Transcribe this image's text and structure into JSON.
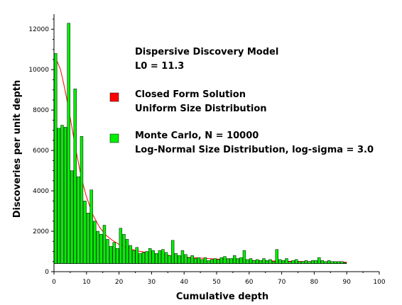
{
  "chart_data": {
    "type": "bar",
    "xlabel": "Cumulative depth",
    "ylabel": "Discoveries per unit depth",
    "xlim": [
      0,
      100
    ],
    "ylim": [
      0,
      12500
    ],
    "baseline": 400,
    "xticks": [
      "0",
      "10",
      "20",
      "30",
      "40",
      "50",
      "60",
      "70",
      "80",
      "90",
      "100"
    ],
    "yticks": [
      "0",
      "2000",
      "4000",
      "6000",
      "8000",
      "10000",
      "12000"
    ],
    "annotations": {
      "title_line1": "Dispersive Discovery Model",
      "title_line2": "L0 = 11.3",
      "closed_line1": "Closed Form Solution",
      "closed_line2": "Uniform Size Distribution",
      "mc_line1": "Monte Carlo, N = 10000",
      "mc_line2": "Log-Normal Size Distribution, log-sigma = 3.0"
    },
    "series": [
      {
        "name": "Closed Form Solution Uniform Size Distribution",
        "type": "line",
        "color": "#ff0000",
        "x": [
          1,
          2,
          3,
          4,
          5,
          6,
          7,
          8,
          9,
          10,
          12,
          14,
          16,
          18,
          20,
          25,
          30,
          40,
          50,
          60,
          70,
          80,
          90
        ],
        "y": [
          10400,
          10000,
          9300,
          8500,
          7600,
          6700,
          5800,
          5000,
          4300,
          3700,
          2800,
          2200,
          1800,
          1550,
          1350,
          1050,
          900,
          720,
          620,
          560,
          520,
          490,
          470
        ]
      },
      {
        "name": "Monte Carlo, N = 10000 Log-Normal Size Distribution, log-sigma = 3.0",
        "type": "bar",
        "color": "#00ee00",
        "x": [
          1,
          2,
          3,
          4,
          5,
          6,
          7,
          8,
          9,
          10,
          11,
          12,
          13,
          14,
          15,
          16,
          17,
          18,
          19,
          20,
          21,
          22,
          23,
          24,
          25,
          26,
          27,
          28,
          29,
          30,
          31,
          32,
          33,
          34,
          35,
          36,
          37,
          38,
          39,
          40,
          41,
          42,
          43,
          44,
          45,
          46,
          47,
          48,
          49,
          50,
          51,
          52,
          53,
          54,
          55,
          56,
          57,
          58,
          59,
          60,
          61,
          62,
          63,
          64,
          65,
          66,
          67,
          68,
          69,
          70,
          71,
          72,
          73,
          74,
          75,
          76,
          77,
          78,
          79,
          80,
          81,
          82,
          83,
          84,
          85,
          86,
          87,
          88,
          89,
          90
        ],
        "y": [
          10800,
          7100,
          7250,
          7150,
          12300,
          5000,
          9050,
          4700,
          6700,
          3500,
          2900,
          4050,
          2500,
          2000,
          1850,
          2300,
          1600,
          1250,
          1450,
          1150,
          2150,
          1850,
          1600,
          1300,
          1050,
          1200,
          900,
          950,
          1000,
          1150,
          1050,
          900,
          1050,
          1100,
          950,
          800,
          1550,
          900,
          800,
          1050,
          850,
          700,
          800,
          650,
          700,
          600,
          700,
          550,
          600,
          650,
          600,
          700,
          750,
          650,
          650,
          800,
          650,
          700,
          1050,
          600,
          650,
          550,
          600,
          550,
          650,
          550,
          600,
          500,
          1100,
          600,
          550,
          650,
          500,
          550,
          600,
          500,
          500,
          550,
          500,
          550,
          550,
          700,
          550,
          500,
          550,
          500,
          500,
          500,
          500,
          450
        ]
      }
    ]
  }
}
